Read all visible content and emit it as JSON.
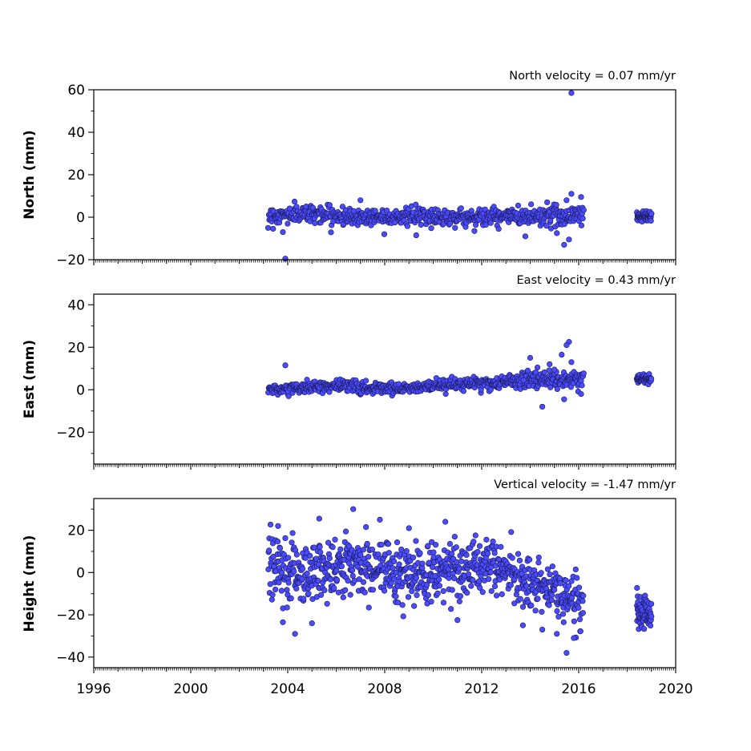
{
  "chart_data": [
    {
      "type": "scatter",
      "title": "North velocity = 0.07 mm/yr",
      "xlabel": "",
      "ylabel": "North (mm)",
      "xlim": [
        1996,
        2020
      ],
      "ylim": [
        -20,
        60
      ],
      "yticks": [
        -20,
        0,
        20,
        40,
        60
      ],
      "ytick_labels": [
        "−20",
        "0",
        "20",
        "40",
        "60"
      ],
      "grid": false,
      "segments": [
        {
          "x_start": 2003.2,
          "x_end": 2016.2,
          "x_step": 0.02,
          "trend": [
            [
              2003.2,
              0.5
            ],
            [
              2005.0,
              2.0
            ],
            [
              2006.5,
              0.0
            ],
            [
              2008.5,
              0.5
            ],
            [
              2011.0,
              0.0
            ],
            [
              2014.0,
              0.5
            ],
            [
              2016.2,
              1.0
            ]
          ],
          "spread": [
            [
              2003.2,
              2.0
            ],
            [
              2014.0,
              2.0
            ],
            [
              2016.2,
              3.0
            ]
          ]
        },
        {
          "x_start": 2018.4,
          "x_end": 2019.0,
          "x_step": 0.01,
          "trend": [
            [
              2018.4,
              0.5
            ],
            [
              2019.0,
              0.5
            ]
          ],
          "spread": [
            [
              2018.4,
              1.2
            ],
            [
              2019.0,
              1.2
            ]
          ]
        }
      ],
      "outliers": [
        [
          2015.7,
          58.5
        ],
        [
          2003.9,
          -19.5
        ],
        [
          2015.7,
          11.0
        ],
        [
          2016.1,
          9.5
        ],
        [
          2015.5,
          8.0
        ],
        [
          2007.0,
          8.0
        ],
        [
          2003.8,
          -7.0
        ],
        [
          2009.3,
          -8.5
        ],
        [
          2015.4,
          -13.0
        ],
        [
          2015.6,
          -10.5
        ],
        [
          2013.8,
          -9.0
        ],
        [
          2014.7,
          7.0
        ],
        [
          2015.1,
          -7.5
        ],
        [
          2011.7,
          -6.5
        ],
        [
          2012.7,
          -5.5
        ]
      ],
      "series": [
        {
          "color": "#4a4aff",
          "edge_color": "#1a1a55"
        }
      ]
    },
    {
      "type": "scatter",
      "title": "East velocity = 0.43 mm/yr",
      "xlabel": "",
      "ylabel": "East (mm)",
      "xlim": [
        1996,
        2020
      ],
      "ylim": [
        -35,
        45
      ],
      "yticks": [
        -20,
        0,
        20,
        40
      ],
      "ytick_labels": [
        "−20",
        "0",
        "20",
        "40"
      ],
      "grid": false,
      "segments": [
        {
          "x_start": 2003.2,
          "x_end": 2016.2,
          "x_step": 0.02,
          "trend": [
            [
              2003.2,
              0.0
            ],
            [
              2006.5,
              2.0
            ],
            [
              2007.5,
              0.5
            ],
            [
              2010.0,
              1.5
            ],
            [
              2012.0,
              3.0
            ],
            [
              2014.0,
              4.5
            ],
            [
              2016.2,
              5.0
            ]
          ],
          "spread": [
            [
              2003.2,
              1.2
            ],
            [
              2013.0,
              1.5
            ],
            [
              2014.5,
              2.5
            ],
            [
              2016.2,
              2.0
            ]
          ]
        },
        {
          "x_start": 2018.4,
          "x_end": 2019.0,
          "x_step": 0.01,
          "trend": [
            [
              2018.4,
              5.0
            ],
            [
              2019.0,
              5.0
            ]
          ],
          "spread": [
            [
              2018.4,
              1.0
            ],
            [
              2019.0,
              1.0
            ]
          ]
        }
      ],
      "outliers": [
        [
          2015.6,
          22.5
        ],
        [
          2015.5,
          21.0
        ],
        [
          2015.3,
          16.5
        ],
        [
          2014.0,
          15.0
        ],
        [
          2015.7,
          13.0
        ],
        [
          2003.9,
          11.5
        ],
        [
          2014.3,
          10.5
        ],
        [
          2014.5,
          -8.0
        ],
        [
          2015.4,
          -4.5
        ],
        [
          2016.1,
          -2.0
        ],
        [
          2013.9,
          9.0
        ],
        [
          2014.8,
          12.0
        ],
        [
          2015.0,
          9.5
        ]
      ],
      "series": [
        {
          "color": "#4a4aff",
          "edge_color": "#1a1a55"
        }
      ]
    },
    {
      "type": "scatter",
      "title": "Vertical velocity = -1.47 mm/yr",
      "xlabel": "",
      "ylabel": "Height (mm)",
      "xlim": [
        1996,
        2020
      ],
      "ylim": [
        -45,
        35
      ],
      "yticks": [
        -40,
        -20,
        0,
        20
      ],
      "ytick_labels": [
        "−40",
        "−20",
        "0",
        "20"
      ],
      "xticks": [
        1996,
        2000,
        2004,
        2008,
        2012,
        2016,
        2020
      ],
      "xtick_labels": [
        "1996",
        "2000",
        "2004",
        "2008",
        "2012",
        "2016",
        "2020"
      ],
      "grid": false,
      "segments": [
        {
          "x_start": 2003.2,
          "x_end": 2016.2,
          "x_step": 0.015,
          "trend": [
            [
              2003.2,
              3.0
            ],
            [
              2004.5,
              0.0
            ],
            [
              2006.5,
              4.0
            ],
            [
              2008.0,
              2.0
            ],
            [
              2009.5,
              -2.0
            ],
            [
              2011.0,
              2.0
            ],
            [
              2012.5,
              3.0
            ],
            [
              2013.5,
              -3.0
            ],
            [
              2014.5,
              -8.0
            ],
            [
              2015.5,
              -12.0
            ],
            [
              2016.2,
              -14.0
            ]
          ],
          "spread": [
            [
              2003.2,
              7.0
            ],
            [
              2008.0,
              7.0
            ],
            [
              2012.0,
              6.0
            ],
            [
              2016.2,
              6.0
            ]
          ]
        },
        {
          "x_start": 2018.4,
          "x_end": 2019.0,
          "x_step": 0.008,
          "trend": [
            [
              2018.4,
              -18.0
            ],
            [
              2019.0,
              -21.0
            ]
          ],
          "spread": [
            [
              2018.4,
              4.5
            ],
            [
              2019.0,
              4.5
            ]
          ]
        }
      ],
      "outliers": [
        [
          2006.7,
          30.0
        ],
        [
          2005.3,
          25.5
        ],
        [
          2007.8,
          25.0
        ],
        [
          2010.5,
          24.0
        ],
        [
          2003.6,
          22.0
        ],
        [
          2009.0,
          21.0
        ],
        [
          2004.3,
          -29.0
        ],
        [
          2015.5,
          -38.0
        ],
        [
          2015.1,
          -29.0
        ],
        [
          2011.0,
          -22.5
        ],
        [
          2013.7,
          -25.0
        ],
        [
          2005.0,
          -24.0
        ],
        [
          2003.8,
          -23.5
        ],
        [
          2015.8,
          -31.0
        ],
        [
          2014.5,
          -27.0
        ]
      ],
      "series": [
        {
          "color": "#4a4aff",
          "edge_color": "#1a1a55"
        }
      ]
    }
  ]
}
